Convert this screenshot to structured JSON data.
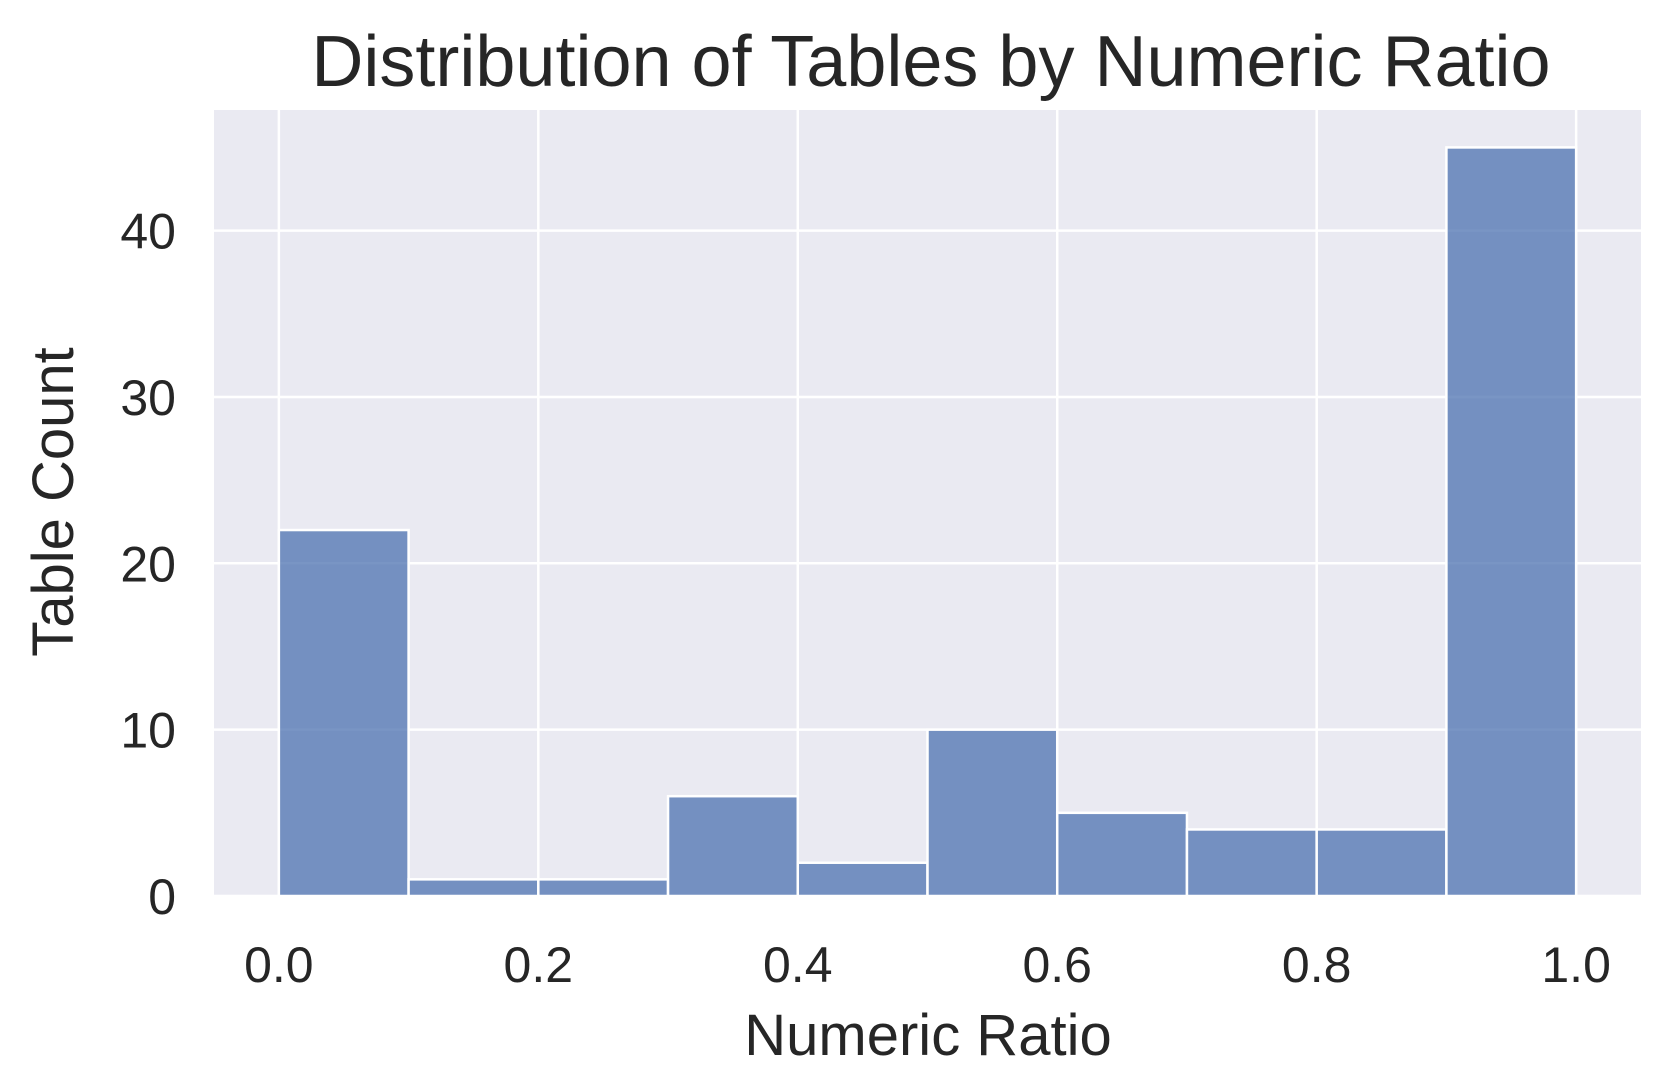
{
  "chart_data": {
    "type": "bar",
    "title": "Distribution of Tables by Numeric Ratio",
    "xlabel": "Numeric Ratio",
    "ylabel": "Table Count",
    "bins": [
      {
        "start": 0.0,
        "end": 0.1,
        "count": 22
      },
      {
        "start": 0.1,
        "end": 0.2,
        "count": 1
      },
      {
        "start": 0.2,
        "end": 0.3,
        "count": 1
      },
      {
        "start": 0.3,
        "end": 0.4,
        "count": 6
      },
      {
        "start": 0.4,
        "end": 0.5,
        "count": 2
      },
      {
        "start": 0.5,
        "end": 0.6,
        "count": 10
      },
      {
        "start": 0.6,
        "end": 0.7,
        "count": 5
      },
      {
        "start": 0.7,
        "end": 0.8,
        "count": 4
      },
      {
        "start": 0.8,
        "end": 0.9,
        "count": 4
      },
      {
        "start": 0.9,
        "end": 1.0,
        "count": 45
      }
    ],
    "xlim": [
      -0.05,
      1.05
    ],
    "ylim": [
      0,
      47.25
    ],
    "xticks": [
      {
        "value": 0.0,
        "label": "0.0"
      },
      {
        "value": 0.2,
        "label": "0.2"
      },
      {
        "value": 0.4,
        "label": "0.4"
      },
      {
        "value": 0.6,
        "label": "0.6"
      },
      {
        "value": 0.8,
        "label": "0.8"
      },
      {
        "value": 1.0,
        "label": "1.0"
      }
    ],
    "yticks": [
      {
        "value": 0,
        "label": "0"
      },
      {
        "value": 10,
        "label": "10"
      },
      {
        "value": 20,
        "label": "20"
      },
      {
        "value": 30,
        "label": "30"
      },
      {
        "value": 40,
        "label": "40"
      }
    ],
    "grid": true,
    "legend": "none",
    "colors": {
      "bar": "#4c72b0",
      "plot_background": "#eaeaf2",
      "gridline": "#ffffff",
      "text": "#262626"
    }
  }
}
